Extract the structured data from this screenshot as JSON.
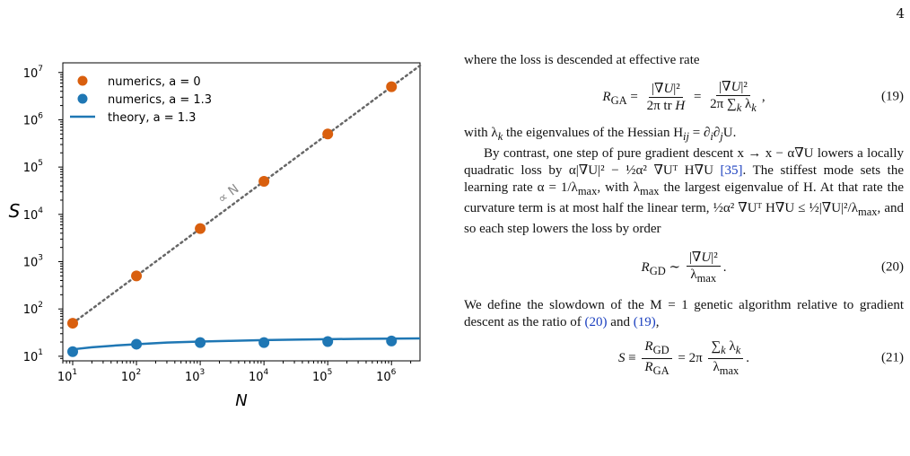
{
  "page_number": "4",
  "chart_data": {
    "type": "scatter",
    "xlabel": "N",
    "ylabel": "S",
    "x_scale": "log",
    "y_scale": "log",
    "xlim": [
      7,
      2800000
    ],
    "ylim": [
      8,
      16000000
    ],
    "x_ticks": [
      10,
      100,
      1000,
      10000,
      100000,
      1000000
    ],
    "x_tick_labels": [
      [
        "10",
        "1"
      ],
      [
        "10",
        "2"
      ],
      [
        "10",
        "3"
      ],
      [
        "10",
        "4"
      ],
      [
        "10",
        "5"
      ],
      [
        "10",
        "6"
      ]
    ],
    "y_ticks": [
      10,
      100,
      1000,
      10000,
      100000,
      1000000,
      10000000
    ],
    "y_tick_labels": [
      [
        "10",
        "1"
      ],
      [
        "10",
        "2"
      ],
      [
        "10",
        "3"
      ],
      [
        "10",
        "4"
      ],
      [
        "10",
        "5"
      ],
      [
        "10",
        "6"
      ],
      [
        "10",
        "7"
      ]
    ],
    "legend_position": "top-left",
    "series": [
      {
        "name": "numerics, a = 0",
        "kind": "points",
        "color": "#d95f0e",
        "x": [
          10,
          100,
          1000,
          10000,
          100000,
          1000000
        ],
        "y": [
          50,
          500,
          5000,
          50000,
          500000,
          5000000
        ]
      },
      {
        "name": "numerics, a = 1.3",
        "kind": "points",
        "color": "#1f77b4",
        "x": [
          10,
          100,
          1000,
          10000,
          100000,
          1000000
        ],
        "y": [
          12.5,
          18,
          19.5,
          19.5,
          20.5,
          21
        ]
      },
      {
        "name": "theory, a = 1.3",
        "kind": "line",
        "color": "#1f77b4",
        "x": [
          10,
          20,
          50,
          100,
          300,
          1000,
          3000,
          10000,
          30000,
          100000,
          300000,
          1000000,
          2800000
        ],
        "y": [
          14,
          15.5,
          17,
          18,
          19.5,
          20.5,
          21.2,
          22,
          22.5,
          23,
          23.3,
          23.6,
          23.8
        ]
      }
    ],
    "reference_line": {
      "label": "∝ N",
      "style": "dotted",
      "color": "#666666",
      "x": [
        10,
        2800000
      ],
      "y": [
        50,
        14000000
      ]
    }
  },
  "text": {
    "p1": "where the loss is descended at effective rate",
    "eq19_lhs": "R",
    "eq19_lhs_sub": "GA",
    "eq19_num": "(19)",
    "p2a": "with λ",
    "p2b": " the eigenvalues of the Hessian H",
    "p2c": " = ∂",
    "p2d": "∂",
    "p2e": "U.",
    "p3": "By contrast, one step of pure gradient descent x → x − α∇U lowers a locally quadratic loss by α|∇U|² − ½α² ∇Uᵀ H∇U",
    "p3_cite": "[35]",
    "p3b": ". The stiffest mode sets the learning rate α = 1/λ",
    "p3c": ", with λ",
    "p3d": " the largest eigenvalue of H. At that rate the curvature term is at most half the linear term, ½α² ∇Uᵀ H∇U ≤ ½|∇U|²/λ",
    "p3e": ", and so each step lowers the loss by order",
    "eq20_num": "(20)",
    "p4a": "We define the slowdown of the M = 1 genetic algorithm relative to gradient descent as the ratio of ",
    "p4_cite1": "(20)",
    "p4b": " and ",
    "p4_cite2": "(19)",
    "p4c": ",",
    "eq21_num": "(21)"
  }
}
